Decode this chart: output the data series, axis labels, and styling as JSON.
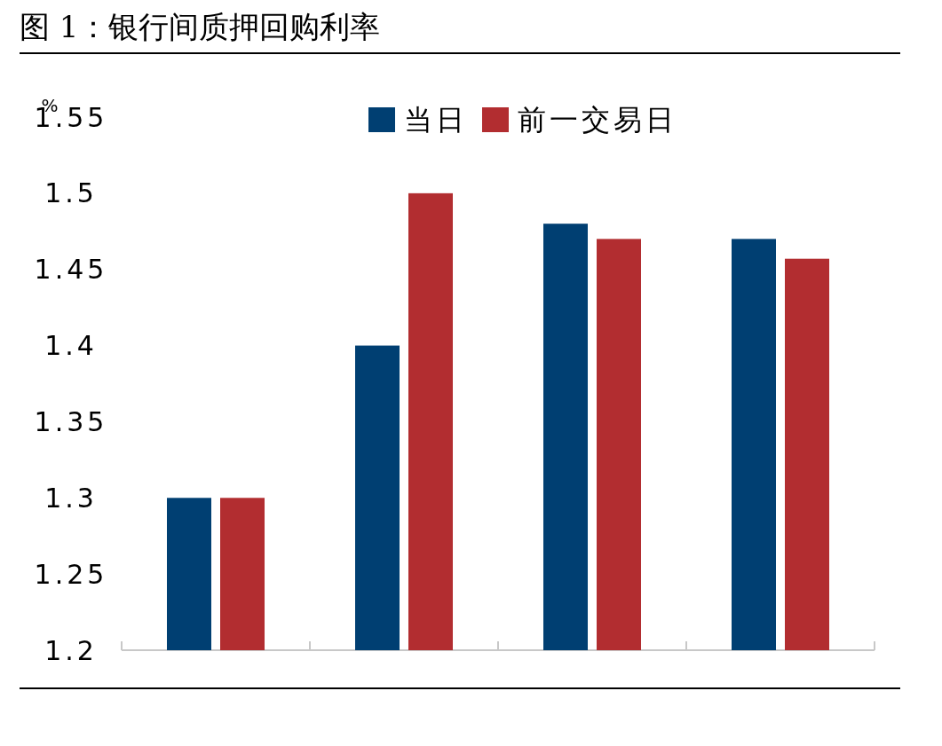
{
  "chart_data": {
    "type": "bar",
    "title": "图 1：银行间质押回购利率",
    "ylabel": "%",
    "categories": [
      null,
      null,
      null,
      null
    ],
    "series": [
      {
        "name": "当日",
        "color": "#003f72",
        "values": [
          1.3,
          1.4,
          1.48,
          1.47
        ]
      },
      {
        "name": "前一交易日",
        "color": "#b22d30",
        "values": [
          1.3,
          1.5,
          1.47,
          1.457
        ]
      }
    ],
    "ylim": [
      1.2,
      1.55
    ],
    "yticks": [
      1.2,
      1.25,
      1.3,
      1.35,
      1.4,
      1.45,
      1.5,
      1.55
    ],
    "grid": false,
    "legend": "top"
  }
}
